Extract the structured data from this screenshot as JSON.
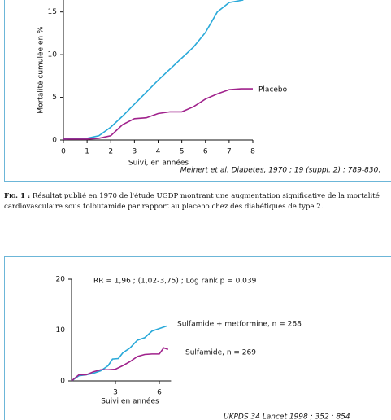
{
  "chart_data": [
    {
      "type": "line",
      "ylabel": "Mortalité cumulée en %",
      "xlabel": "Suivi, en années",
      "source": "Meinert et al. Diabetes, 1970 ; 19 (suppl. 2) : 789-830.",
      "xlim": [
        0,
        8
      ],
      "xticks": [
        0,
        1,
        2,
        3,
        4,
        5,
        6,
        7,
        8
      ],
      "ylim": [
        0,
        16.4
      ],
      "yticks": [
        0,
        5,
        10,
        15
      ],
      "series": [
        {
          "color": "#29a9d9",
          "x": [
            0,
            1,
            1.5,
            2,
            2.5,
            3,
            3.5,
            4,
            4.5,
            5,
            5.5,
            6,
            6.5,
            7,
            7.6
          ],
          "values": [
            0.1,
            0.2,
            0.5,
            1.5,
            2.8,
            4.2,
            5.6,
            7,
            8.3,
            9.6,
            10.9,
            12.6,
            15,
            16.1,
            16.4
          ]
        },
        {
          "name": "Placebo",
          "color": "#a0228c",
          "x": [
            0,
            1,
            1.5,
            2,
            2.5,
            3,
            3.5,
            4,
            4.5,
            5,
            5.5,
            6,
            6.5,
            7,
            7.5,
            8
          ],
          "values": [
            0.1,
            0.1,
            0.2,
            0.5,
            1.8,
            2.5,
            2.6,
            3.1,
            3.3,
            3.3,
            3.9,
            4.8,
            5.4,
            5.9,
            6,
            6
          ]
        }
      ]
    },
    {
      "type": "line",
      "annotation": "RR = 1,96 ; (1,02-3,75) ; Log rank p = 0,039",
      "xlabel": "Suivi en années",
      "source": "UKPDS 34 Lancet 1998 ; 352 : 854",
      "xlim": [
        0,
        6.8
      ],
      "xticks": [
        3,
        6
      ],
      "ylim": [
        0,
        20
      ],
      "yticks": [
        0,
        10,
        20
      ],
      "series": [
        {
          "name": "Sulfamide +  metformine, n = 268",
          "color": "#29a9d9",
          "x": [
            0,
            0.5,
            1,
            1.5,
            2,
            2.5,
            2.8,
            3.2,
            3.5,
            4,
            4.5,
            5,
            5.5,
            6,
            6.5
          ],
          "values": [
            0,
            1,
            1.2,
            1.5,
            2,
            3,
            4.3,
            4.4,
            5.5,
            6.5,
            8,
            8.5,
            9.8,
            10.3,
            10.8
          ]
        },
        {
          "name": "Sulfamide, n = 269",
          "color": "#a0228c",
          "x": [
            0,
            0.5,
            1,
            1.5,
            2,
            2.5,
            3,
            3.5,
            4,
            4.5,
            5,
            5.5,
            6,
            6.3,
            6.6
          ],
          "values": [
            0,
            1.2,
            1.2,
            1.8,
            2.2,
            2.2,
            2.3,
            3,
            3.8,
            4.8,
            5.2,
            5.3,
            5.3,
            6.5,
            6.2
          ]
        }
      ]
    }
  ],
  "caption": {
    "label": "Fig. 1 :",
    "text": "Résultat publié en 1970 de l'étude UGDP montrant une augmentation significative de la mortalité cardiovasculaire sous tolbutamide par rapport au placebo chez des diabétiques de type 2."
  }
}
